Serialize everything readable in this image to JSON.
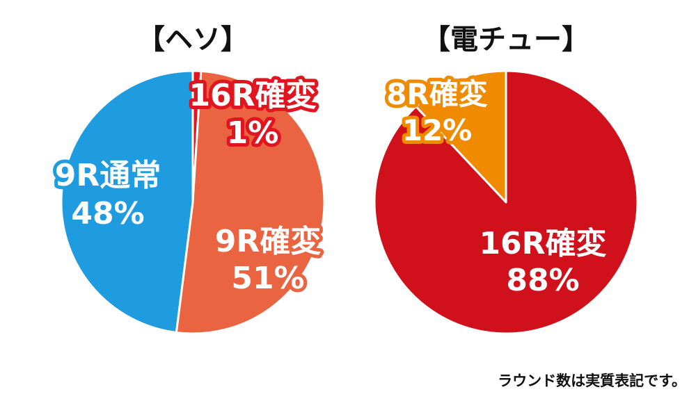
{
  "chart_data": [
    {
      "type": "pie",
      "title": "【ヘソ】",
      "start_angle_deg": 0,
      "direction": "clockwise",
      "slices": [
        {
          "name": "16R確変",
          "value": 1,
          "label": "1%",
          "color": "#E0151F"
        },
        {
          "name": "9R確変",
          "value": 51,
          "label": "51%",
          "color": "#EA6441"
        },
        {
          "name": "9R通常",
          "value": 48,
          "label": "48%",
          "color": "#1F9CE0"
        }
      ]
    },
    {
      "type": "pie",
      "title": "【電チュー】",
      "start_angle_deg": 0,
      "direction": "clockwise",
      "slices": [
        {
          "name": "16R確変",
          "value": 88,
          "label": "88%",
          "color": "#D0111C"
        },
        {
          "name": "8R確変",
          "value": 12,
          "label": "12%",
          "color": "#F08B00"
        }
      ]
    }
  ],
  "footnote": "ラウンド数は実質表記です。"
}
